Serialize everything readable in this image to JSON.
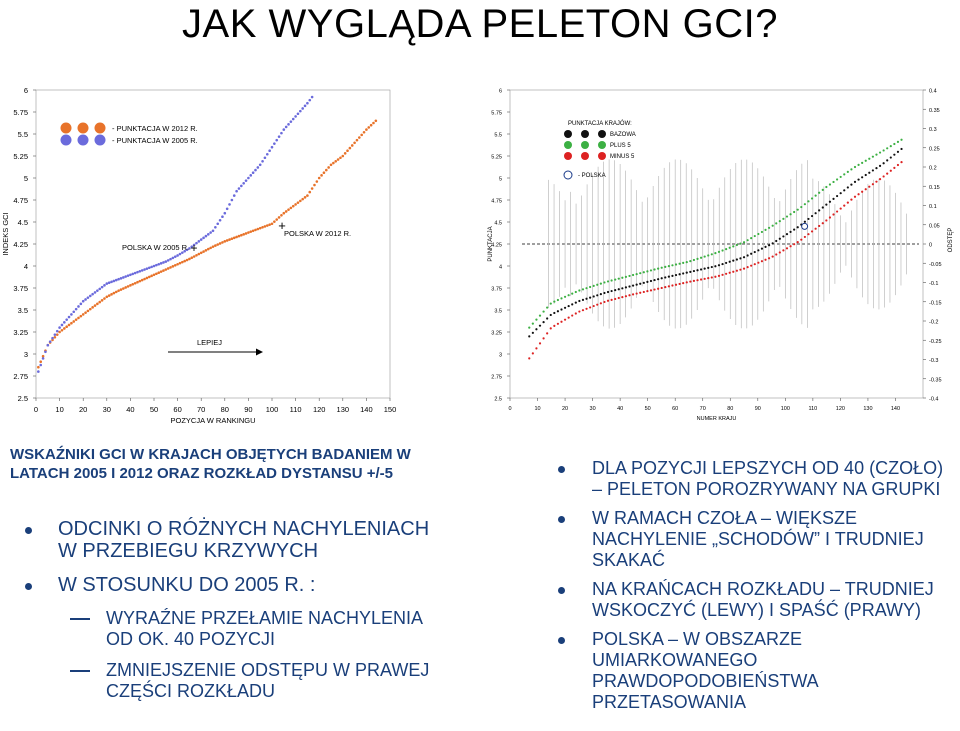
{
  "title": "JAK WYGLĄDA PELETON GCI?",
  "caption": "WSKAŹNIKI GCI W KRAJACH OBJĘTYCH BADANIEM W LATACH 2005 I 2012 ORAZ ROZKŁAD DYSTANSU +/-5",
  "left_bullets": {
    "b1": "ODCINKI O RÓŻNYCH NACHYLENIACH W PRZEBIEGU KRZYWYCH",
    "b2": "W STOSUNKU DO 2005 R. :",
    "s1": "WYRAŹNE PRZEŁAMIE NACHYLENIA OD OK. 40 POZYCJI",
    "s2": "ZMNIEJSZENIE ODSTĘPU W PRAWEJ CZĘŚCI ROZKŁADU"
  },
  "right_bullets": [
    "DLA POZYCJI LEPSZYCH OD 40 (CZOŁO) – PELETON POROZRYWANY NA GRUPKI",
    "W RAMACH CZOŁA – WIĘKSZE NACHYLENIE „SCHODÓW” I TRUDNIEJ SKAKAĆ",
    "NA KRAŃCACH ROZKŁADU – TRUDNIEJ WSKOCZYĆ (LEWY) I SPAŚĆ (PRAWY)",
    "POLSKA – W OBSZARZE UMIARKOWANEGO PRAWDOPODOBIEŃSTWA PRZETASOWANIA"
  ],
  "chart_data": [
    {
      "type": "scatter",
      "xlabel": "POZYCJA W RANKINGU",
      "ylabel": "INDEKS GCI",
      "xlim": [
        0,
        150
      ],
      "ylim": [
        2.5,
        6
      ],
      "xticks": [
        "0",
        "10",
        "20",
        "30",
        "40",
        "50",
        "60",
        "70",
        "80",
        "90",
        "100",
        "110",
        "120",
        "130",
        "140",
        "150"
      ],
      "yticks": [
        "2.5",
        "2.75",
        "3",
        "3.25",
        "3.5",
        "3.75",
        "4",
        "4.25",
        "4.5",
        "4.75",
        "5",
        "5.25",
        "5.5",
        "5.75",
        "6"
      ],
      "legend": [
        "- PUNKTACJA W 2012 R.",
        "- PUNKTACJA W 2005 R."
      ],
      "annotations": {
        "poland2005": "POLSKA W 2005 R.",
        "poland2012": "POLSKA W 2012 R.",
        "arrow": "LEPIEJ"
      },
      "colors": {
        "y2012": "#e8732a",
        "y2005": "#6b6bdc"
      },
      "series": [
        {
          "name": "- PUNKTACJA W 2012 R.",
          "x": [
            1,
            5,
            10,
            15,
            20,
            25,
            30,
            35,
            40,
            45,
            50,
            55,
            60,
            65,
            70,
            75,
            80,
            85,
            90,
            95,
            100,
            105,
            110,
            115,
            120,
            125,
            130,
            135,
            140,
            144
          ],
          "y": [
            2.85,
            3.1,
            3.25,
            3.35,
            3.45,
            3.55,
            3.65,
            3.72,
            3.78,
            3.84,
            3.9,
            3.96,
            4.02,
            4.08,
            4.15,
            4.22,
            4.28,
            4.33,
            4.38,
            4.43,
            4.48,
            4.6,
            4.7,
            4.8,
            5.0,
            5.15,
            5.25,
            5.4,
            5.55,
            5.65
          ]
        },
        {
          "name": "- PUNKTACJA W 2005 R.",
          "x": [
            1,
            5,
            10,
            15,
            20,
            25,
            30,
            35,
            40,
            45,
            50,
            55,
            60,
            65,
            70,
            75,
            80,
            85,
            90,
            95,
            100,
            105,
            110,
            115,
            117
          ],
          "y": [
            2.8,
            3.1,
            3.3,
            3.45,
            3.6,
            3.7,
            3.8,
            3.85,
            3.9,
            3.95,
            4.0,
            4.05,
            4.12,
            4.2,
            4.3,
            4.4,
            4.6,
            4.85,
            5.0,
            5.15,
            5.35,
            5.55,
            5.7,
            5.85,
            5.92
          ]
        }
      ]
    },
    {
      "type": "scatter",
      "xlabel": "NUMER KRAJU",
      "ylabel": "PUNKTACJA",
      "ylabel_right": "ODSTĘP",
      "xlim": [
        0,
        150
      ],
      "ylim": [
        2.5,
        6
      ],
      "ylim_right": [
        -0.4,
        0.4
      ],
      "xticks": [
        "0",
        "10",
        "20",
        "30",
        "40",
        "50",
        "60",
        "70",
        "80",
        "90",
        "100",
        "110",
        "120",
        "130",
        "140"
      ],
      "yticks": [
        "2.5",
        "2.75",
        "3",
        "3.25",
        "3.5",
        "3.75",
        "4",
        "4.25",
        "4.5",
        "4.75",
        "5",
        "5.25",
        "5.5",
        "5.75",
        "6"
      ],
      "yticks_right": [
        "-0.4",
        "-0.35",
        "-0.3",
        "-0.25",
        "-0.2",
        "-0.15",
        "-0.1",
        "-0.05",
        "0",
        "0.05",
        "0.1",
        "0.15",
        "0.2",
        "0.25",
        "0.3",
        "0.35",
        "0.4"
      ],
      "legend_title": "PUNKTACJA KRAJÓW:",
      "legend": [
        "BAZOWA",
        "PLUS 5",
        "MINUS 5"
      ],
      "poland_label": "- POLSKA",
      "colors": {
        "base": "#111111",
        "plus": "#3cb043",
        "minus": "#dd2222",
        "bars": "#bbbbbb"
      },
      "series": [
        {
          "name": "BAZOWA",
          "x": [
            7,
            15,
            25,
            35,
            45,
            55,
            65,
            75,
            85,
            95,
            105,
            115,
            125,
            135,
            143
          ],
          "y": [
            3.2,
            3.45,
            3.6,
            3.7,
            3.78,
            3.86,
            3.93,
            4.0,
            4.1,
            4.25,
            4.45,
            4.7,
            4.95,
            5.15,
            5.35
          ]
        },
        {
          "name": "PLUS 5",
          "x": [
            7,
            15,
            25,
            35,
            45,
            55,
            65,
            75,
            85,
            95,
            105,
            115,
            125,
            135,
            143
          ],
          "y": [
            3.3,
            3.58,
            3.72,
            3.82,
            3.9,
            3.98,
            4.05,
            4.15,
            4.27,
            4.45,
            4.65,
            4.9,
            5.12,
            5.3,
            5.45
          ]
        },
        {
          "name": "MINUS 5",
          "x": [
            7,
            15,
            25,
            35,
            45,
            55,
            65,
            75,
            85,
            95,
            105,
            115,
            125,
            135,
            143
          ],
          "y": [
            2.95,
            3.3,
            3.48,
            3.6,
            3.68,
            3.75,
            3.82,
            3.88,
            3.97,
            4.1,
            4.28,
            4.52,
            4.78,
            5.0,
            5.2
          ]
        }
      ]
    }
  ]
}
